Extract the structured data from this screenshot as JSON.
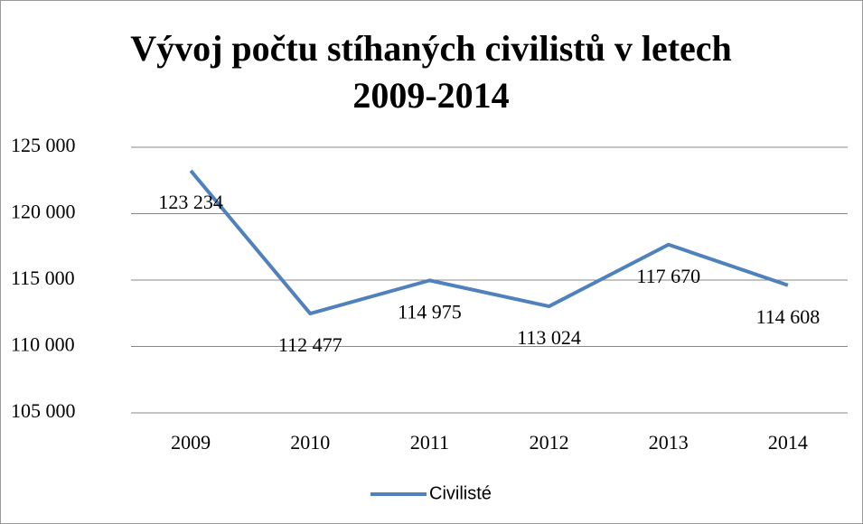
{
  "chart_data": {
    "type": "line",
    "title": "Vývoj počtu stíhaných civilistů v letech 2009-2014",
    "categories": [
      "2009",
      "2010",
      "2011",
      "2012",
      "2013",
      "2014"
    ],
    "series": [
      {
        "name": "Civilisté",
        "color": "#4f81bd",
        "values": [
          123234,
          112477,
          114975,
          113024,
          117670,
          114608
        ],
        "value_labels": [
          "123 234",
          "112 477",
          "114 975",
          "113 024",
          "117 670",
          "114 608"
        ]
      }
    ],
    "ylim": [
      105000,
      125000
    ],
    "yticks": [
      {
        "value": 105000,
        "label": "105 000"
      },
      {
        "value": 110000,
        "label": "110 000"
      },
      {
        "value": 115000,
        "label": "115 000"
      },
      {
        "value": 120000,
        "label": "120 000"
      },
      {
        "value": 125000,
        "label": "125 000"
      }
    ],
    "grid": true,
    "legend": "bottom"
  }
}
